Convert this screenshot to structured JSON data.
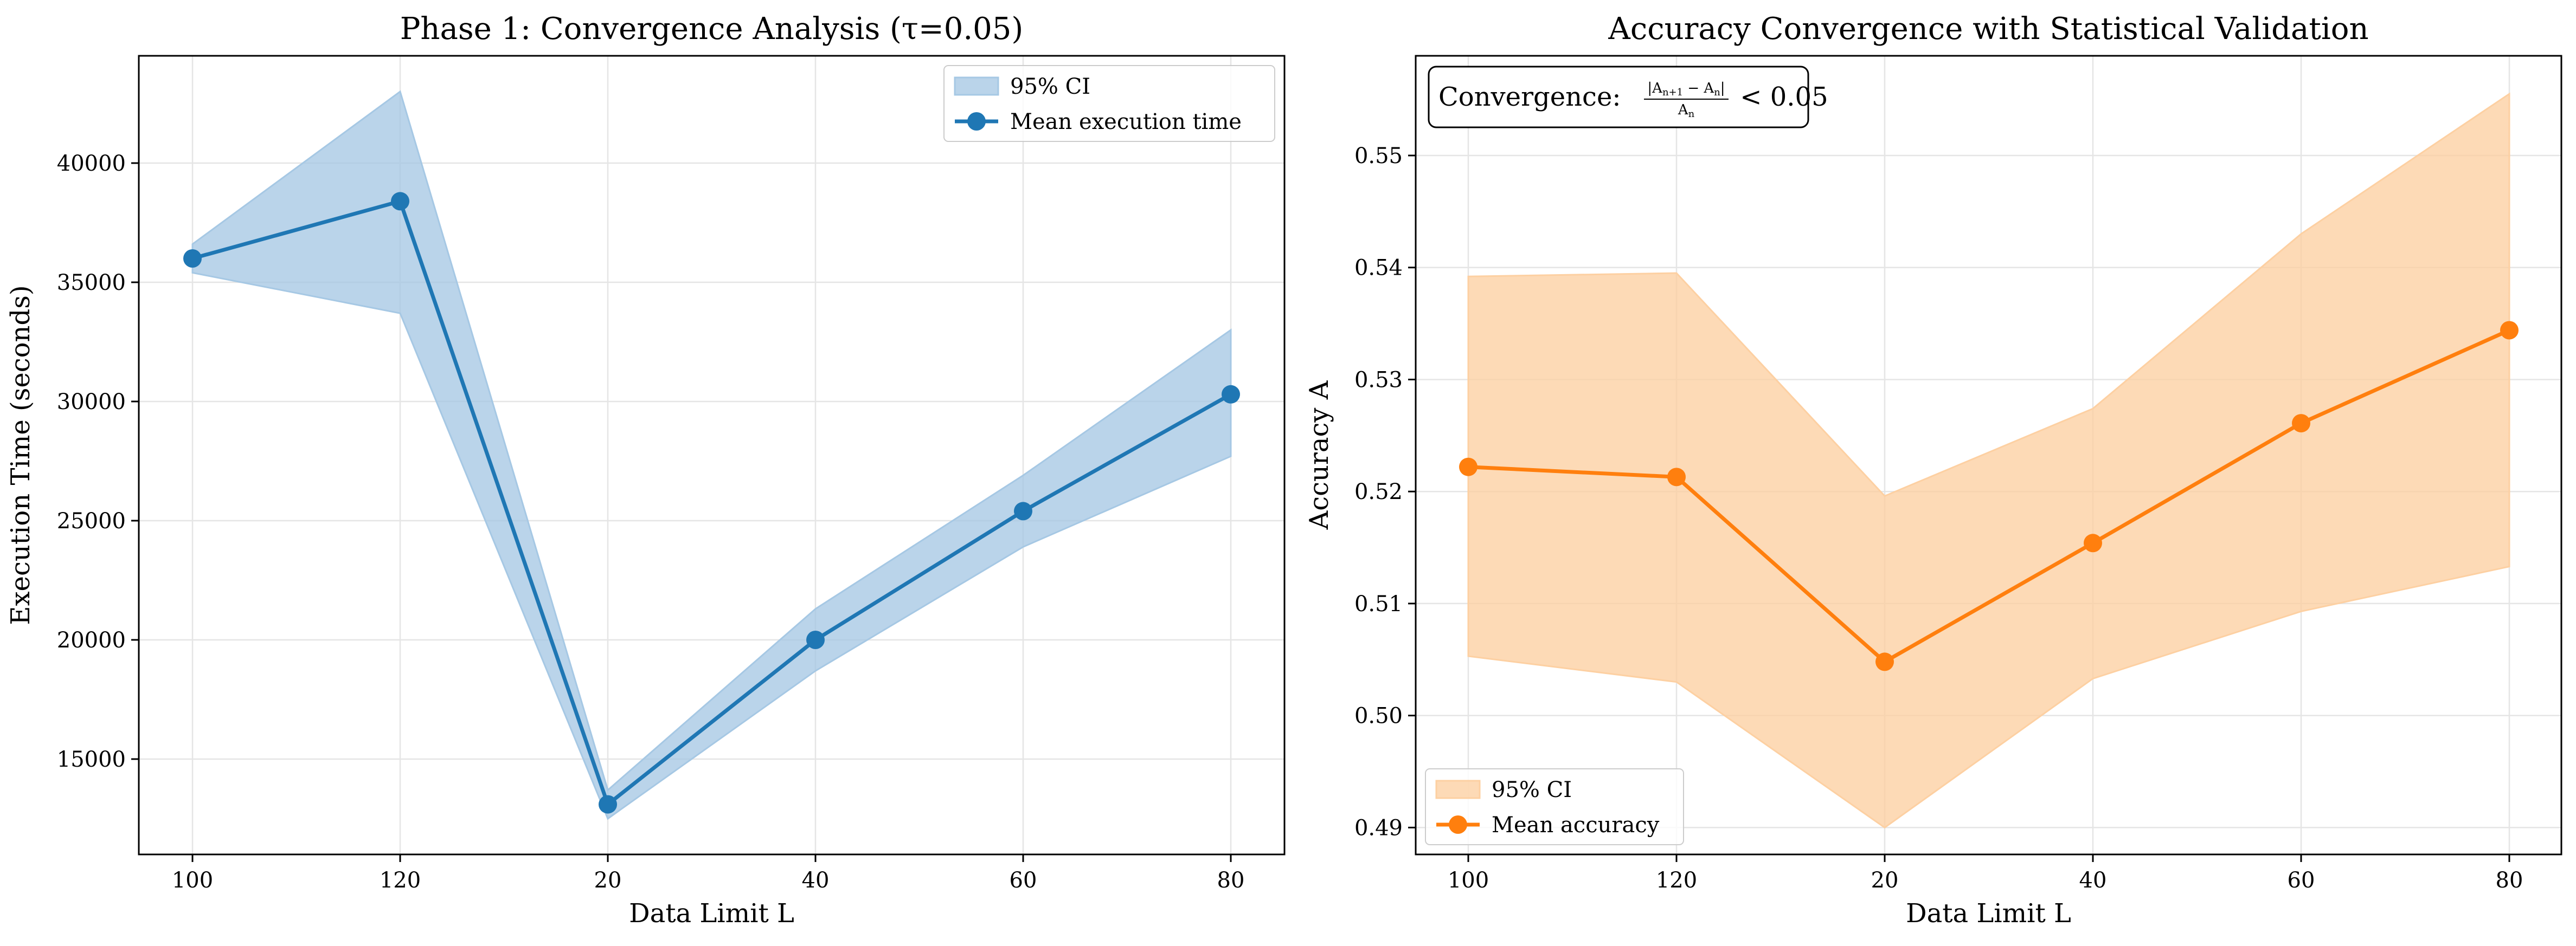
{
  "chart_data": [
    {
      "type": "line",
      "title": "Phase 1: Convergence Analysis (τ=0.05)",
      "xlabel": "Data Limit L",
      "ylabel": "Execution Time (seconds)",
      "categories": [
        "100",
        "120",
        "20",
        "40",
        "60",
        "80"
      ],
      "series": [
        {
          "name": "Mean execution time",
          "values": [
            36000,
            38400,
            13100,
            20000,
            25400,
            30300
          ],
          "ci_lower": [
            35400,
            33700,
            12500,
            18700,
            23900,
            27700
          ],
          "ci_upper": [
            36600,
            43000,
            13700,
            21300,
            26900,
            33000
          ],
          "ci_name": "95% CI",
          "color": "#1f77b4",
          "fill_color": "#a6c8e4"
        }
      ],
      "yticks": [
        15000,
        20000,
        25000,
        30000,
        35000,
        40000
      ],
      "ylim": [
        11000,
        44500
      ],
      "grid": true,
      "legend_position": "upper right"
    },
    {
      "type": "line",
      "title": "Accuracy Convergence with Statistical Validation",
      "xlabel": "Data Limit L",
      "ylabel": "Accuracy A",
      "categories": [
        "100",
        "120",
        "20",
        "40",
        "60",
        "80"
      ],
      "series": [
        {
          "name": "Mean accuracy",
          "values": [
            0.5222,
            0.5213,
            0.5048,
            0.5154,
            0.5261,
            0.5344
          ],
          "ci_lower": [
            0.5053,
            0.503,
            0.49,
            0.5033,
            0.5093,
            0.5133
          ],
          "ci_upper": [
            0.5392,
            0.5395,
            0.5196,
            0.5274,
            0.543,
            0.5555
          ],
          "ci_name": "95% CI",
          "color": "#ff7f0e",
          "fill_color": "#fdd0a2"
        }
      ],
      "yticks": [
        0.49,
        0.5,
        0.51,
        0.52,
        0.53,
        0.54,
        0.55
      ],
      "ylim": [
        0.4876,
        0.5589
      ],
      "grid": true,
      "legend_position": "lower left",
      "annotation": {
        "prefix": "Convergence: ",
        "numerator": "|A",
        "numerator_sub1": "n+1",
        "numerator_mid": " − A",
        "numerator_sub2": "n",
        "numerator_end": "|",
        "denominator": "A",
        "denominator_sub": "n",
        "suffix": " < 0.05",
        "position": "upper left"
      }
    }
  ]
}
